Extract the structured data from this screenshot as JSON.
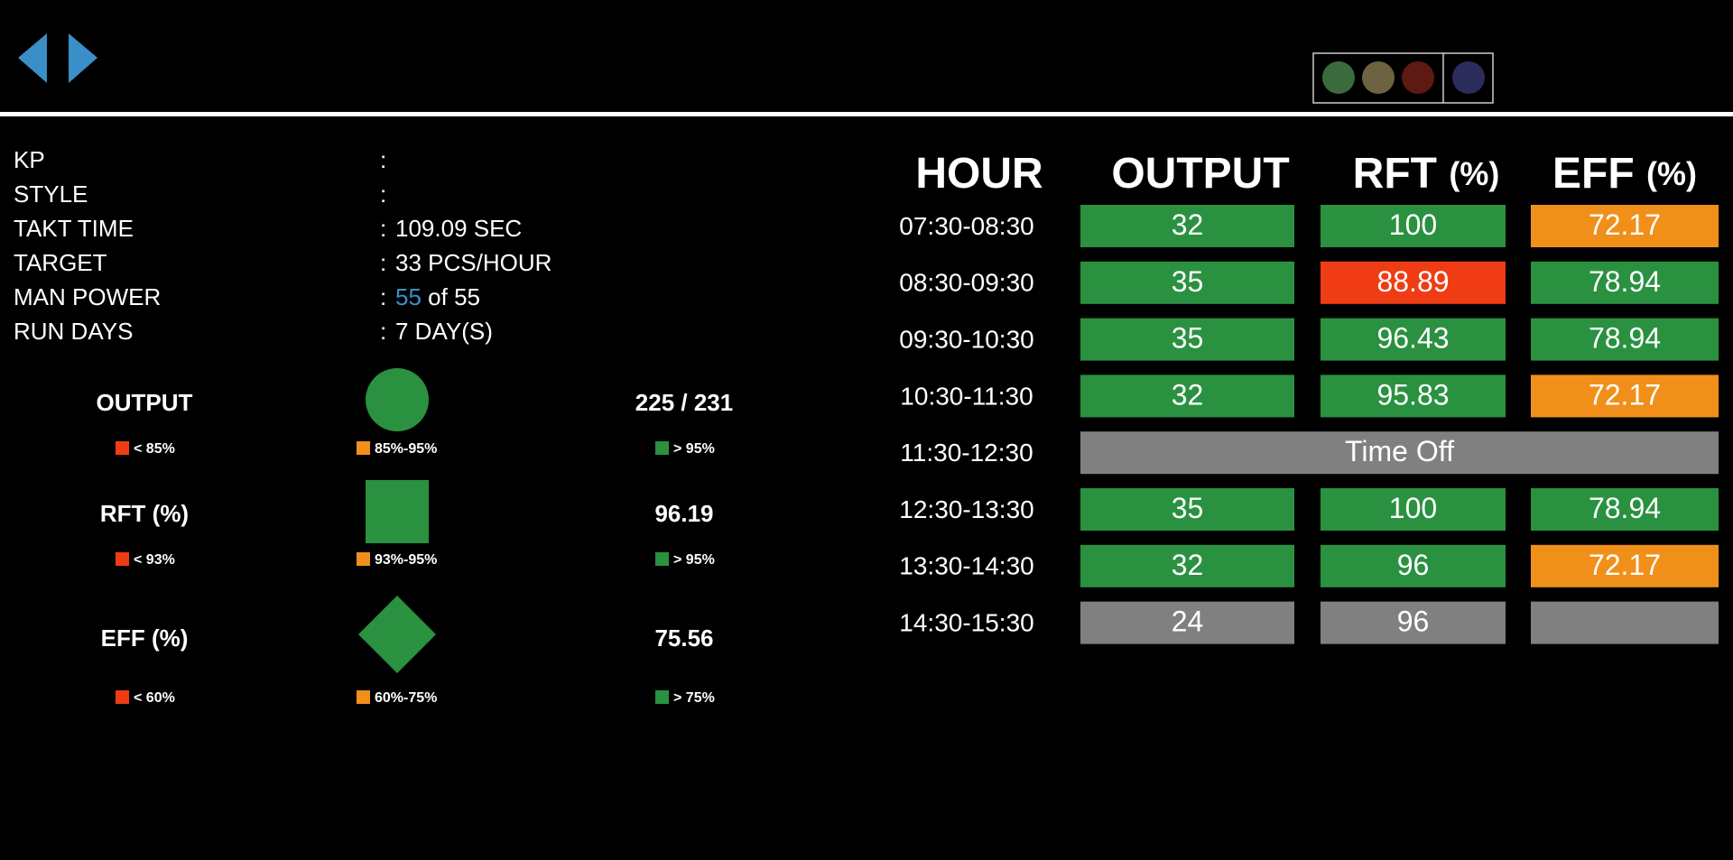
{
  "info": {
    "separator": ":",
    "rows": [
      {
        "label": "KP"
      },
      {
        "label": "STYLE"
      },
      {
        "label": "TAKT TIME",
        "value": "109.09 SEC"
      },
      {
        "label": "TARGET",
        "value": "33 PCS/HOUR"
      },
      {
        "label": "MAN POWER",
        "highlight": "55",
        "value": "of 55"
      },
      {
        "label": "RUN DAYS",
        "value": "7 DAY(S)"
      }
    ]
  },
  "kpis": [
    {
      "label": "OUTPUT",
      "shape": "circle",
      "color": "#2a9140",
      "value": "225 / 231",
      "legend": [
        {
          "color": "#f03c14",
          "label": "< 85%"
        },
        {
          "color": "#f0901a",
          "label": "85%-95%"
        },
        {
          "color": "#2a9140",
          "label": "> 95%"
        }
      ]
    },
    {
      "label": "RFT (%)",
      "shape": "square",
      "color": "#2a9140",
      "value": "96.19",
      "legend": [
        {
          "color": "#f03c14",
          "label": "< 93%"
        },
        {
          "color": "#f0901a",
          "label": "93%-95%"
        },
        {
          "color": "#2a9140",
          "label": "> 95%"
        }
      ]
    },
    {
      "label": "EFF (%)",
      "shape": "diamond",
      "color": "#2a9140",
      "value": "75.56",
      "legend": [
        {
          "color": "#f03c14",
          "label": "< 60%"
        },
        {
          "color": "#f0901a",
          "label": "60%-75%"
        },
        {
          "color": "#2a9140",
          "label": "> 75%"
        }
      ]
    }
  ],
  "table": {
    "headers": [
      {
        "main": "HOUR"
      },
      {
        "main": "OUTPUT"
      },
      {
        "main": "RFT",
        "unit": "(%)"
      },
      {
        "main": "EFF",
        "unit": "(%)"
      }
    ],
    "rows": [
      {
        "hour": "07:30-08:30",
        "cells": [
          {
            "text": "32",
            "color": "#2a9140"
          },
          {
            "text": "100",
            "color": "#2a9140"
          },
          {
            "text": "72.17",
            "color": "#f0901a"
          }
        ]
      },
      {
        "hour": "08:30-09:30",
        "cells": [
          {
            "text": "35",
            "color": "#2a9140"
          },
          {
            "text": "88.89",
            "color": "#f03c14"
          },
          {
            "text": "78.94",
            "color": "#2a9140"
          }
        ]
      },
      {
        "hour": "09:30-10:30",
        "cells": [
          {
            "text": "35",
            "color": "#2a9140"
          },
          {
            "text": "96.43",
            "color": "#2a9140"
          },
          {
            "text": "78.94",
            "color": "#2a9140"
          }
        ]
      },
      {
        "hour": "10:30-11:30",
        "cells": [
          {
            "text": "32",
            "color": "#2a9140"
          },
          {
            "text": "95.83",
            "color": "#2a9140"
          },
          {
            "text": "72.17",
            "color": "#f0901a"
          }
        ]
      },
      {
        "hour": "11:30-12:30",
        "cells": [
          {
            "text": "Time Off",
            "color": "#808080"
          }
        ]
      },
      {
        "hour": "12:30-13:30",
        "cells": [
          {
            "text": "35",
            "color": "#2a9140"
          },
          {
            "text": "100",
            "color": "#2a9140"
          },
          {
            "text": "78.94",
            "color": "#2a9140"
          }
        ]
      },
      {
        "hour": "13:30-14:30",
        "cells": [
          {
            "text": "32",
            "color": "#2a9140"
          },
          {
            "text": "96",
            "color": "#2a9140"
          },
          {
            "text": "72.17",
            "color": "#f0901a"
          }
        ]
      },
      {
        "hour": "14:30-15:30",
        "cells": [
          {
            "text": "24",
            "color": "#808080"
          },
          {
            "text": "96",
            "color": "#808080"
          },
          {
            "color": "#808080"
          }
        ]
      }
    ]
  },
  "lights": [
    "#3a6b3c",
    "#6e6240",
    "#5c1a12",
    "#2c2c5c"
  ]
}
